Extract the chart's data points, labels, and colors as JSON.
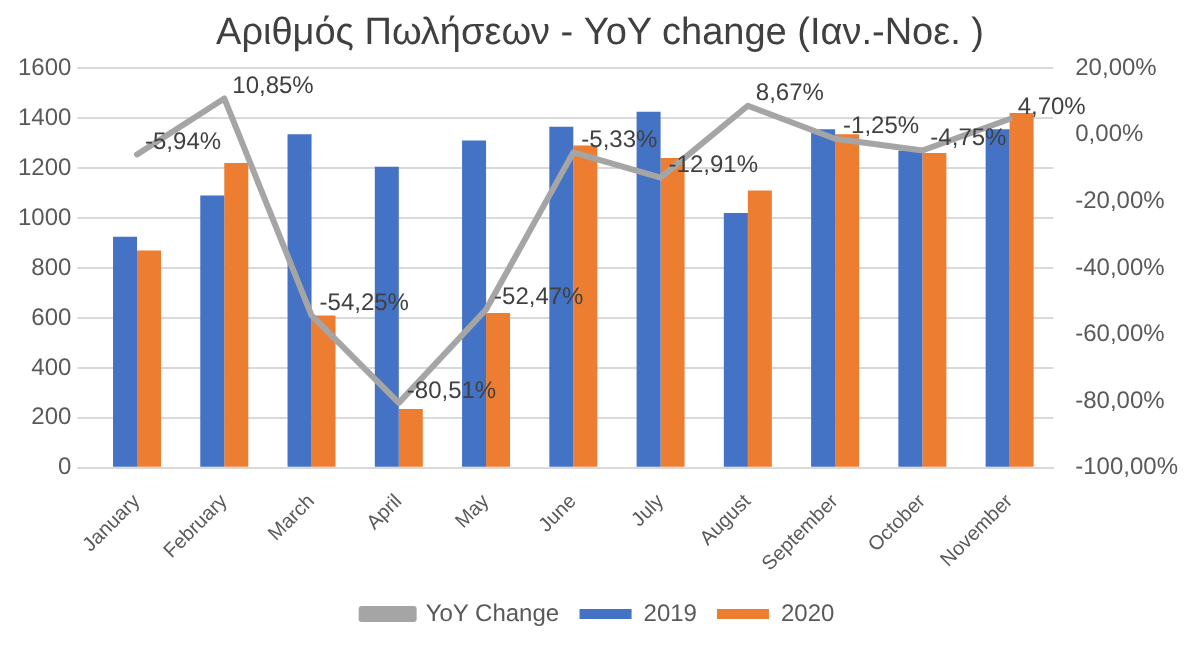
{
  "chart_data": {
    "type": "bar",
    "title": "Αριθμός Πωλήσεων - YoY change (Ιαν.-Νοε. )",
    "categories": [
      "January",
      "February",
      "March",
      "April",
      "May",
      "June",
      "July",
      "August",
      "September",
      "October",
      "November"
    ],
    "series": [
      {
        "name": "2019",
        "color": "#4472c4",
        "values": [
          925,
          1090,
          1335,
          1205,
          1310,
          1365,
          1425,
          1020,
          1355,
          1270,
          1355
        ]
      },
      {
        "name": "2020",
        "color": "#ed7d31",
        "values": [
          870,
          1220,
          610,
          235,
          620,
          1290,
          1240,
          1110,
          1335,
          1260,
          1420
        ]
      },
      {
        "name": "YoY Change",
        "type": "line",
        "axis": "y2",
        "color": "#a5a5a5",
        "values": [
          -5.94,
          10.85,
          -54.25,
          -80.51,
          -52.47,
          -5.33,
          -12.91,
          8.67,
          -1.25,
          -4.75,
          4.7
        ],
        "value_labels": [
          "-5,94%",
          "10,85%",
          "-54,25%",
          "-80,51%",
          "-52,47%",
          "-5,33%",
          "-12,91%",
          "8,67%",
          "-1,25%",
          "-4,75%",
          "4,70%"
        ]
      }
    ],
    "ylim": [
      0,
      1600
    ],
    "yticks": [
      0,
      200,
      400,
      600,
      800,
      1000,
      1200,
      1400,
      1600
    ],
    "y2lim": [
      -100,
      20
    ],
    "y2ticks": [
      {
        "value": -100,
        "label": "-100,00%"
      },
      {
        "value": -80,
        "label": "-80,00%"
      },
      {
        "value": -60,
        "label": "-60,00%"
      },
      {
        "value": -40,
        "label": "-40,00%"
      },
      {
        "value": -20,
        "label": "-20,00%"
      },
      {
        "value": 0,
        "label": "0,00%"
      },
      {
        "value": 20,
        "label": "20,00%"
      }
    ],
    "grid": "y",
    "legend": "bottom",
    "marker": "none"
  }
}
